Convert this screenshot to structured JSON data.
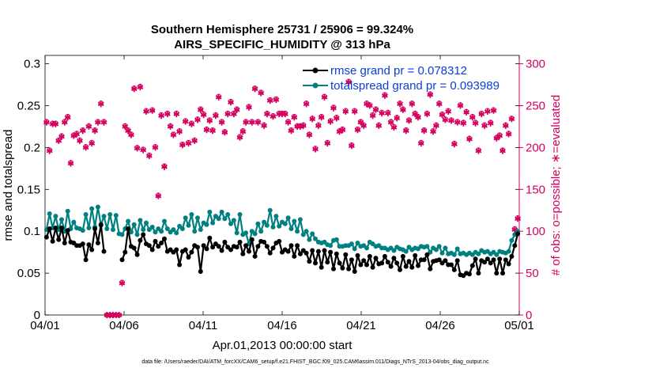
{
  "chart_data": {
    "type": "line",
    "title": "Southern Hemisphere 25731 / 25906 = 99.324%",
    "subtitle": "AIRS_SPECIFIC_HUMIDITY @ 313 hPa",
    "xlabel": "Apr.01,2013 00:00:00 start",
    "ylabel_left": "rmse and totalspread",
    "ylabel_right": "# of obs: o=possible; ∗=evaluated",
    "footnote": "data file: /Users/raeder/DAI/ATM_forcXX/CAM6_setup/f.e21.FHIST_BGC.f09_025.CAM6assim.011/Diags_NTrS_2013-04/obs_diag_output.nc",
    "xlim": [
      0,
      30
    ],
    "xticks": [
      0,
      5,
      10,
      15,
      20,
      25,
      30
    ],
    "xtick_labels": [
      "04/01",
      "04/06",
      "04/11",
      "04/16",
      "04/21",
      "04/26",
      "05/01"
    ],
    "ylim_left": [
      0,
      0.31
    ],
    "yticks_left": [
      0,
      0.05,
      0.1,
      0.15,
      0.2,
      0.25,
      0.3
    ],
    "ytick_labels_left": [
      "0",
      "0.05",
      "0.1",
      "0.15",
      "0.2",
      "0.25",
      "0.3"
    ],
    "ylim_right": [
      0,
      310
    ],
    "yticks_right": [
      0,
      50,
      100,
      150,
      200,
      250,
      300
    ],
    "ytick_labels_right": [
      "0",
      "50",
      "100",
      "150",
      "200",
      "250",
      "300"
    ],
    "colors": {
      "rmse": "#000000",
      "spread": "#008080",
      "obs": "#d6005f",
      "legend_text": "#0a3fd8"
    },
    "series": [
      {
        "name": "rmse grand pr = 0.078312",
        "color": "#000000",
        "values": [
          0.093,
          0.103,
          0.088,
          0.104,
          0.09,
          0.104,
          0.086,
          0.101,
          0.087,
          0.086,
          0.083,
          0.083,
          0.085,
          0.066,
          0.084,
          0.078,
          0.103,
          0.086,
          0.108,
          0.076,
          null,
          null,
          null,
          null,
          null,
          0.066,
          0.075,
          0.103,
          0.082,
          0.08,
          0.072,
          0.089,
          0.096,
          0.085,
          0.083,
          0.078,
          0.088,
          0.082,
          0.086,
          0.091,
          0.076,
          0.078,
          0.075,
          0.078,
          0.06,
          0.076,
          0.078,
          0.069,
          0.075,
          0.083,
          0.081,
          0.052,
          0.083,
          0.079,
          0.092,
          0.081,
          0.085,
          0.082,
          0.077,
          0.087,
          0.081,
          0.078,
          0.082,
          0.081,
          0.087,
          0.073,
          0.083,
          0.076,
          0.09,
          0.07,
          0.082,
          0.088,
          0.087,
          0.082,
          0.074,
          0.08,
          0.086,
          0.088,
          0.075,
          0.078,
          0.076,
          0.083,
          0.07,
          0.083,
          0.073,
          0.077,
          0.074,
          0.064,
          0.077,
          0.062,
          0.076,
          0.057,
          0.077,
          0.063,
          0.075,
          0.055,
          0.073,
          0.062,
          0.056,
          0.072,
          0.055,
          0.066,
          0.052,
          0.071,
          0.06,
          0.065,
          0.06,
          0.07,
          0.057,
          0.068,
          0.061,
          0.062,
          0.07,
          0.063,
          0.058,
          0.068,
          0.062,
          0.054,
          0.07,
          0.058,
          0.064,
          0.057,
          0.071,
          0.059,
          0.066,
          0.066,
          0.072,
          0.055,
          0.064,
          0.065,
          0.066,
          0.062,
          0.065,
          0.06,
          0.06,
          0.054,
          0.065,
          0.048,
          0.047,
          0.05,
          0.049,
          0.059,
          0.067,
          0.05,
          0.065,
          0.063,
          0.067,
          0.062,
          0.066,
          0.05,
          0.067,
          0.05,
          0.066,
          0.061,
          0.07,
          0.083,
          0.097
        ]
      },
      {
        "name": "totalspread grand pr = 0.093989",
        "color": "#008080",
        "values": [
          0.102,
          0.121,
          0.104,
          0.118,
          0.102,
          0.114,
          0.1,
          0.124,
          0.103,
          0.111,
          0.104,
          0.103,
          0.101,
          0.12,
          0.104,
          0.127,
          0.105,
          0.129,
          0.107,
          0.118,
          0.103,
          0.12,
          0.102,
          0.119,
          0.097,
          0.096,
          0.103,
          0.112,
          0.099,
          0.108,
          0.096,
          0.113,
          0.102,
          0.11,
          0.102,
          0.105,
          0.099,
          0.103,
          0.1,
          0.112,
          0.103,
          0.099,
          0.102,
          0.098,
          0.106,
          0.103,
          0.116,
          0.107,
          0.12,
          0.1,
          0.116,
          0.102,
          0.11,
          0.108,
          0.123,
          0.11,
          0.118,
          0.115,
          0.123,
          0.115,
          0.12,
          0.109,
          0.113,
          0.098,
          0.12,
          0.096,
          0.098,
          0.085,
          0.1,
          0.097,
          0.109,
          0.1,
          0.111,
          0.107,
          0.125,
          0.105,
          0.118,
          0.106,
          0.111,
          0.109,
          0.116,
          0.103,
          0.112,
          0.1,
          0.114,
          0.096,
          0.1,
          0.09,
          0.097,
          0.091,
          0.087,
          0.086,
          0.087,
          0.084,
          0.083,
          0.089,
          0.09,
          0.082,
          0.082,
          0.083,
          0.083,
          0.085,
          0.079,
          0.086,
          0.082,
          0.083,
          0.08,
          0.087,
          0.085,
          0.082,
          0.083,
          0.08,
          0.08,
          0.078,
          0.08,
          0.077,
          0.081,
          0.079,
          0.078,
          0.076,
          0.081,
          0.078,
          0.08,
          0.079,
          0.082,
          0.081,
          0.082,
          0.075,
          0.08,
          0.078,
          0.082,
          0.074,
          0.08,
          0.073,
          0.074,
          0.072,
          0.079,
          0.073,
          0.074,
          0.072,
          0.074,
          0.072,
          0.075,
          0.073,
          0.077,
          0.075,
          0.076,
          0.073,
          0.075,
          0.072,
          0.076,
          0.075,
          0.074,
          0.076,
          0.089,
          0.096,
          0.1
        ]
      },
      {
        "name": "obs evaluated",
        "color": "#d6005f",
        "axis": "right",
        "values": [
          230,
          196,
          228,
          228,
          208,
          213,
          230,
          236,
          181,
          214,
          216,
          208,
          220,
          200,
          225,
          205,
          220,
          230,
          252,
          230,
          0,
          0,
          0,
          0,
          0,
          38,
          225,
          220,
          215,
          270,
          199,
          272,
          197,
          243,
          190,
          244,
          200,
          142,
          238,
          177,
          240,
          225,
          215,
          240,
          219,
          203,
          231,
          205,
          228,
          208,
          233,
          245,
          239,
          221,
          232,
          220,
          238,
          260,
          230,
          218,
          240,
          254,
          240,
          245,
          212,
          219,
          230,
          248,
          230,
          270,
          230,
          265,
          226,
          240,
          256,
          237,
          257,
          240,
          240,
          240,
          230,
          220,
          236,
          225,
          225,
          226,
          252,
          215,
          234,
          198,
          226,
          236,
          260,
          205,
          231,
          247,
          235,
          219,
          221,
          243,
          278,
          202,
          243,
          221,
          230,
          226,
          252,
          250,
          238,
          245,
          226,
          241,
          262,
          241,
          230,
          224,
          235,
          252,
          245,
          220,
          232,
          252,
          240,
          236,
          205,
          220,
          240,
          263,
          219,
          226,
          252,
          239,
          233,
          243,
          232,
          204,
          230,
          250,
          229,
          242,
          210,
          236,
          229,
          196,
          240,
          226,
          243,
          229,
          244,
          211,
          214,
          196,
          226,
          216,
          234,
          102,
          115
        ]
      },
      {
        "name": "obs possible",
        "color": "#d6005f",
        "axis": "right",
        "values": [
          231,
          197,
          229,
          229,
          209,
          214,
          231,
          237,
          182,
          215,
          217,
          209,
          221,
          201,
          226,
          206,
          221,
          231,
          253,
          231,
          0,
          0,
          0,
          0,
          0,
          39,
          226,
          221,
          216,
          271,
          200,
          273,
          198,
          244,
          191,
          245,
          201,
          143,
          239,
          178,
          241,
          226,
          216,
          241,
          220,
          204,
          232,
          206,
          229,
          209,
          234,
          246,
          240,
          222,
          233,
          221,
          239,
          261,
          231,
          219,
          241,
          255,
          241,
          246,
          213,
          220,
          231,
          249,
          231,
          271,
          231,
          266,
          227,
          241,
          257,
          238,
          258,
          241,
          241,
          241,
          231,
          221,
          237,
          226,
          226,
          227,
          253,
          216,
          235,
          199,
          227,
          237,
          261,
          206,
          232,
          248,
          236,
          220,
          222,
          244,
          279,
          203,
          244,
          222,
          231,
          227,
          253,
          251,
          239,
          246,
          227,
          242,
          263,
          242,
          231,
          225,
          236,
          253,
          246,
          221,
          233,
          253,
          241,
          237,
          206,
          221,
          241,
          264,
          220,
          227,
          253,
          240,
          234,
          244,
          233,
          205,
          231,
          251,
          230,
          243,
          211,
          237,
          230,
          197,
          241,
          227,
          244,
          230,
          245,
          212,
          215,
          197,
          227,
          217,
          235,
          103,
          116
        ]
      }
    ],
    "legend": [
      "rmse grand pr = 0.078312",
      "totalspread grand pr = 0.093989"
    ],
    "legend_position": "top-right"
  }
}
